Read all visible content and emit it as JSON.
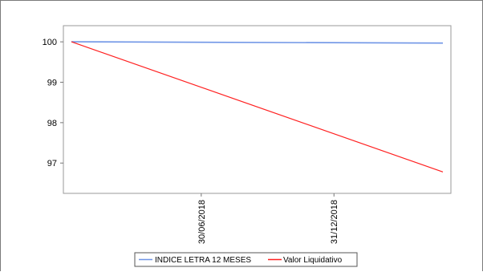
{
  "chart_data": {
    "type": "line",
    "title": "",
    "xlabel": "",
    "ylabel": "",
    "x_ticks": [
      "30/06/2018",
      "31/12/2018"
    ],
    "x_range": [
      "2018-01-01",
      "2019-05-31"
    ],
    "x": [
      "2018-01-01",
      "2019-05-31"
    ],
    "ylim": [
      96.25,
      100.4
    ],
    "y_ticks": [
      97,
      98,
      99,
      100
    ],
    "grid": false,
    "legend_position": "bottom",
    "series": [
      {
        "name": "INDICE LETRA 12 MESES",
        "color": "#6f95e6",
        "values": [
          100.0,
          99.97
        ]
      },
      {
        "name": "Valor Liquidativo",
        "color": "#ff2020",
        "values": [
          100.0,
          96.78
        ]
      }
    ]
  }
}
